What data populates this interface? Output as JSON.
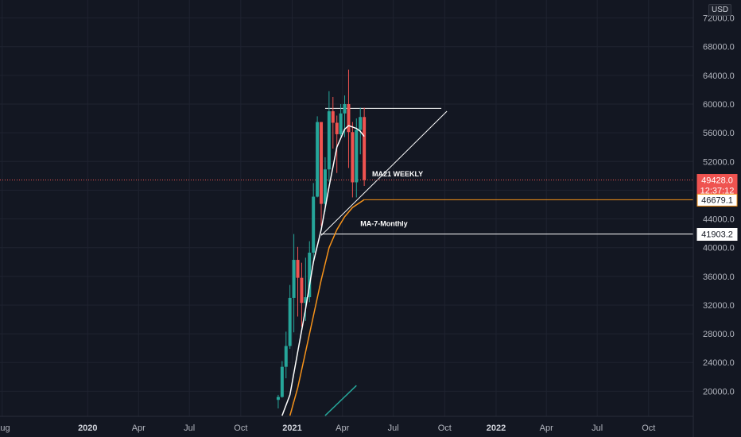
{
  "chart_data": {
    "type": "candlestick",
    "currency": "USD",
    "y_ticks": [
      20000.0,
      24000.0,
      28000.0,
      32000.0,
      36000.0,
      40000.0,
      44000.0,
      48000.0,
      52000.0,
      56000.0,
      60000.0,
      64000.0,
      68000.0,
      72000.0
    ],
    "y_tick_labels": [
      "20000.0",
      "24000.0",
      "28000.0",
      "32000.0",
      "36000.0",
      "40000.0",
      "44000.0",
      "",
      "52000.0",
      "56000.0",
      "60000.0",
      "64000.0",
      "68000.0",
      "72000.0"
    ],
    "ylim": [
      16500,
      74500
    ],
    "x_ticks": [
      {
        "label": "Aug",
        "date": "2019-08-01",
        "year": false
      },
      {
        "label": "2020",
        "date": "2020-01-01",
        "year": true
      },
      {
        "label": "Apr",
        "date": "2020-04-01",
        "year": false
      },
      {
        "label": "Jul",
        "date": "2020-07-01",
        "year": false
      },
      {
        "label": "Oct",
        "date": "2020-10-01",
        "year": false
      },
      {
        "label": "2021",
        "date": "2021-01-01",
        "year": true
      },
      {
        "label": "Apr",
        "date": "2021-04-01",
        "year": false
      },
      {
        "label": "Jul",
        "date": "2021-07-01",
        "year": false
      },
      {
        "label": "Oct",
        "date": "2021-10-01",
        "year": false
      },
      {
        "label": "2022",
        "date": "2022-01-01",
        "year": true
      },
      {
        "label": "Apr",
        "date": "2022-04-01",
        "year": false
      },
      {
        "label": "Jul",
        "date": "2022-07-01",
        "year": false
      },
      {
        "label": "Oct",
        "date": "2022-10-01",
        "year": false
      }
    ],
    "xlim": [
      "2019-07-28",
      "2022-12-20"
    ],
    "candles": [
      {
        "date": "2020-12-07",
        "open": 18800,
        "high": 19500,
        "low": 17600,
        "close": 19200
      },
      {
        "date": "2020-12-14",
        "open": 19200,
        "high": 24200,
        "low": 19100,
        "close": 23400
      },
      {
        "date": "2020-12-21",
        "open": 23400,
        "high": 28300,
        "low": 21800,
        "close": 26300
      },
      {
        "date": "2020-12-28",
        "open": 26300,
        "high": 34800,
        "low": 25900,
        "close": 33000
      },
      {
        "date": "2021-01-04",
        "open": 33000,
        "high": 41900,
        "low": 28200,
        "close": 38300
      },
      {
        "date": "2021-01-11",
        "open": 38300,
        "high": 40100,
        "low": 30400,
        "close": 35800
      },
      {
        "date": "2021-01-18",
        "open": 35800,
        "high": 37900,
        "low": 29000,
        "close": 32300
      },
      {
        "date": "2021-01-25",
        "open": 32300,
        "high": 38600,
        "low": 29800,
        "close": 33100
      },
      {
        "date": "2021-02-01",
        "open": 33100,
        "high": 40900,
        "low": 32400,
        "close": 39300
      },
      {
        "date": "2021-02-08",
        "open": 39300,
        "high": 49000,
        "low": 37800,
        "close": 47100
      },
      {
        "date": "2021-02-15",
        "open": 47100,
        "high": 58300,
        "low": 47000,
        "close": 57500
      },
      {
        "date": "2021-02-22",
        "open": 57500,
        "high": 57500,
        "low": 43000,
        "close": 46100
      },
      {
        "date": "2021-03-01",
        "open": 46100,
        "high": 52600,
        "low": 45000,
        "close": 50900
      },
      {
        "date": "2021-03-08",
        "open": 50900,
        "high": 61800,
        "low": 49200,
        "close": 59000
      },
      {
        "date": "2021-03-15",
        "open": 59000,
        "high": 61000,
        "low": 53800,
        "close": 57400
      },
      {
        "date": "2021-03-22",
        "open": 57400,
        "high": 58400,
        "low": 50400,
        "close": 55800
      },
      {
        "date": "2021-03-29",
        "open": 55800,
        "high": 60000,
        "low": 55500,
        "close": 58700
      },
      {
        "date": "2021-04-05",
        "open": 58700,
        "high": 61200,
        "low": 55400,
        "close": 60000
      },
      {
        "date": "2021-04-12",
        "open": 60000,
        "high": 64800,
        "low": 51100,
        "close": 56100
      },
      {
        "date": "2021-04-19",
        "open": 56100,
        "high": 57500,
        "low": 47000,
        "close": 49100
      },
      {
        "date": "2021-04-26",
        "open": 49100,
        "high": 58000,
        "low": 47000,
        "close": 56400
      },
      {
        "date": "2021-05-03",
        "open": 56400,
        "high": 59500,
        "low": 53000,
        "close": 58200
      },
      {
        "date": "2021-05-10",
        "open": 58200,
        "high": 59500,
        "low": 48600,
        "close": 49428
      }
    ],
    "series": [
      {
        "name": "MA21 WEEKLY",
        "color": "#ffffff",
        "points": [
          [
            "2020-12-14",
            16600
          ],
          [
            "2020-12-28",
            19500
          ],
          [
            "2021-01-11",
            25500
          ],
          [
            "2021-01-25",
            31500
          ],
          [
            "2021-02-08",
            38000
          ],
          [
            "2021-02-22",
            42500
          ],
          [
            "2021-03-08",
            48500
          ],
          [
            "2021-03-22",
            54000
          ],
          [
            "2021-04-05",
            56500
          ],
          [
            "2021-04-12",
            57000
          ],
          [
            "2021-04-26",
            56600
          ],
          [
            "2021-05-03",
            56200
          ],
          [
            "2021-05-10",
            55500
          ]
        ]
      },
      {
        "name": "MA-7-Monthly",
        "color": "#f7931a",
        "points": [
          [
            "2020-12-28",
            16600
          ],
          [
            "2021-01-11",
            20500
          ],
          [
            "2021-01-25",
            25500
          ],
          [
            "2021-02-08",
            30500
          ],
          [
            "2021-02-22",
            35500
          ],
          [
            "2021-03-08",
            40000
          ],
          [
            "2021-03-22",
            42500
          ],
          [
            "2021-04-05",
            44300
          ],
          [
            "2021-04-19",
            45600
          ],
          [
            "2021-05-10",
            46679
          ]
        ]
      },
      {
        "name": "",
        "color": "#26a69a",
        "points": [
          [
            "2021-03-01",
            16600
          ],
          [
            "2021-04-26",
            20800
          ]
        ]
      }
    ],
    "horizontal_lines": [
      {
        "value": 59400,
        "from": "2021-03-01",
        "to": "2021-09-25",
        "color": "#ffffff",
        "tag": false
      },
      {
        "value": 46679.1,
        "from": "2021-05-10",
        "to": "2022-12-20",
        "color": "#f7931a",
        "tag": true,
        "tag_text": "46679.1"
      },
      {
        "value": 41903.2,
        "from": "2021-02-22",
        "to": "2022-12-20",
        "color": "#ffffff",
        "tag": true,
        "tag_text": "41903.2"
      }
    ],
    "trend_lines": [
      {
        "from": [
          "2021-02-22",
          41700
        ],
        "to": [
          "2021-10-05",
          59000
        ],
        "color": "#ffffff"
      }
    ],
    "last_price": {
      "value": 49428.0,
      "text": "49428.0",
      "countdown": "12:37:12",
      "color": "#ef5350"
    },
    "annotations": [
      {
        "text": "MA21 WEEKLY",
        "date": "2021-05-24",
        "value": 49900
      },
      {
        "text": "MA-7-Monthly",
        "date": "2021-05-03",
        "value": 43000
      }
    ],
    "colors": {
      "up": "#26a69a",
      "down": "#ef5350",
      "grid": "#1f2330",
      "background": "#131722"
    }
  }
}
